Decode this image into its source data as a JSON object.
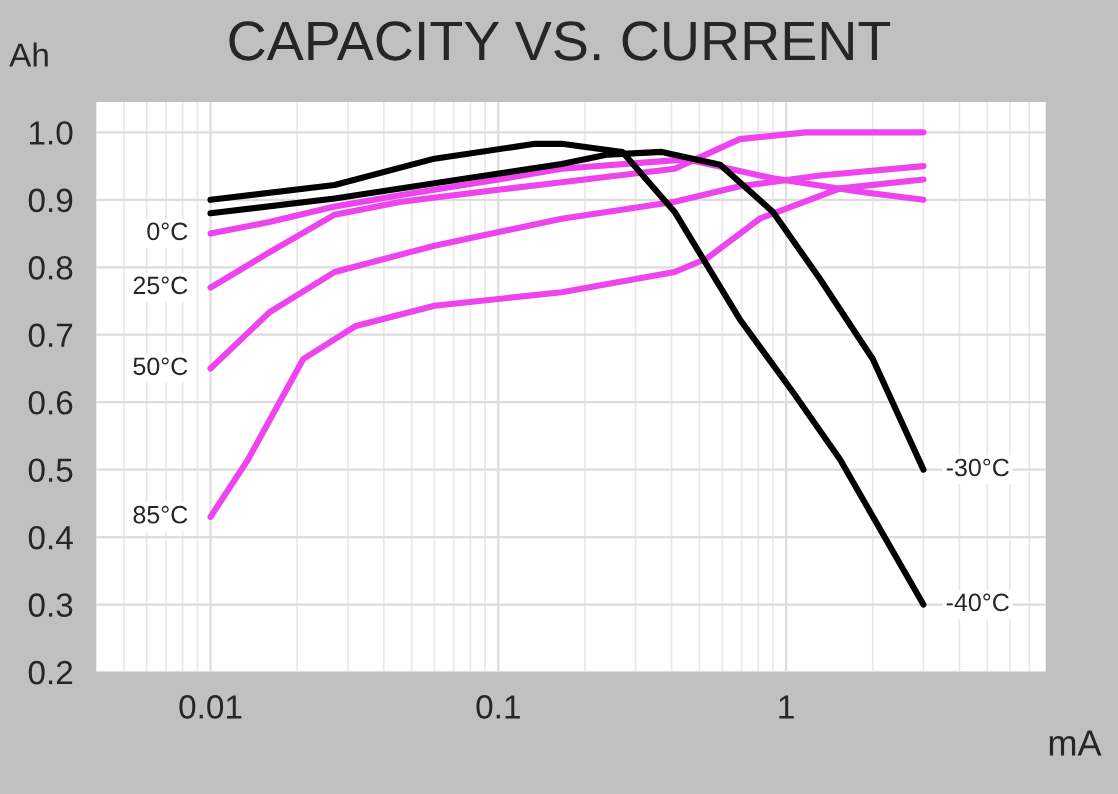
{
  "chart_data": {
    "type": "line",
    "title": "CAPACITY VS. CURRENT",
    "xlabel": "mA",
    "ylabel": "Ah",
    "log": "x",
    "xlim": [
      0.004,
      8
    ],
    "xticks": [
      0.01,
      0.1,
      1
    ],
    "ylim": [
      0.2,
      1.045
    ],
    "yticks": [
      {
        "value": 0.2,
        "label": "0.2"
      },
      {
        "value": 0.3,
        "label": "0.3"
      },
      {
        "value": 0.4,
        "label": "0.4"
      },
      {
        "value": 0.5,
        "label": "0.5"
      },
      {
        "value": 0.6,
        "label": "0.6"
      },
      {
        "value": 0.7,
        "label": "0.7"
      },
      {
        "value": 0.8,
        "label": "0.8"
      },
      {
        "value": 0.9,
        "label": "0.9"
      },
      {
        "value": 1.0,
        "label": "1.0"
      }
    ],
    "grid": true,
    "legend": false,
    "marker": "none",
    "line_style": "solid",
    "series": [
      {
        "name": "0°C",
        "color": "#ee44ee",
        "x": [
          0.01,
          0.016,
          0.027,
          0.046,
          0.1,
          0.166,
          0.45,
          0.9,
          1.8,
          3
        ],
        "values": [
          0.85,
          0.867,
          0.89,
          0.907,
          0.93,
          0.946,
          0.96,
          0.932,
          0.912,
          0.9
        ]
      },
      {
        "name": "25°C",
        "color": "#ee44ee",
        "x": [
          0.01,
          0.016,
          0.027,
          0.046,
          0.1,
          0.166,
          0.41,
          0.69,
          1.17,
          3
        ],
        "values": [
          0.77,
          0.822,
          0.878,
          0.897,
          0.915,
          0.926,
          0.946,
          0.99,
          1.0,
          1.0
        ]
      },
      {
        "name": "50°C",
        "color": "#ee44ee",
        "x": [
          0.01,
          0.016,
          0.027,
          0.06,
          0.166,
          0.41,
          0.69,
          1.31,
          3
        ],
        "values": [
          0.65,
          0.733,
          0.793,
          0.832,
          0.872,
          0.897,
          0.92,
          0.936,
          0.95
        ]
      },
      {
        "name": "85°C",
        "color": "#ee44ee",
        "x": [
          0.01,
          0.0135,
          0.021,
          0.032,
          0.06,
          0.166,
          0.41,
          0.53,
          0.81,
          1.54,
          3
        ],
        "values": [
          0.43,
          0.515,
          0.664,
          0.713,
          0.743,
          0.763,
          0.793,
          0.813,
          0.872,
          0.917,
          0.93
        ]
      },
      {
        "name": "-30°C",
        "color": "#000000",
        "x": [
          0.01,
          0.027,
          0.078,
          0.166,
          0.24,
          0.37,
          0.59,
          0.9,
          1.31,
          2.0,
          3
        ],
        "values": [
          0.88,
          0.902,
          0.932,
          0.953,
          0.967,
          0.971,
          0.952,
          0.882,
          0.783,
          0.664,
          0.5
        ]
      },
      {
        "name": "-40°C",
        "color": "#000000",
        "x": [
          0.01,
          0.027,
          0.06,
          0.134,
          0.166,
          0.27,
          0.41,
          0.69,
          1.06,
          1.54,
          3
        ],
        "values": [
          0.9,
          0.922,
          0.961,
          0.983,
          0.983,
          0.971,
          0.882,
          0.723,
          0.614,
          0.515,
          0.3
        ]
      }
    ]
  }
}
